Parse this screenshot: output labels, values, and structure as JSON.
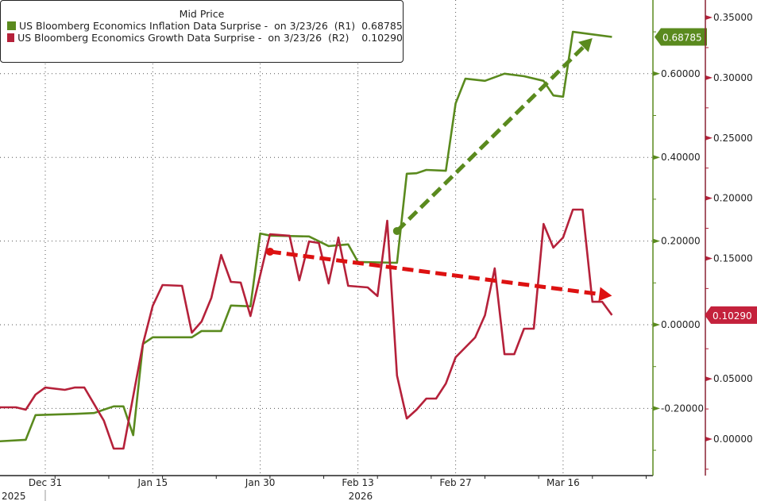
{
  "legend": {
    "title": "Mid Price",
    "entries": [
      {
        "label": "US Bloomberg Economics Inflation Data Surprise -  on 3/23/26  (R1)  0.68785",
        "color": "#5a8a1e"
      },
      {
        "label": "US Bloomberg Economics Growth Data Surprise -  on 3/23/26  (R2)    0.10290",
        "color": "#b5213a"
      }
    ]
  },
  "chart_data": {
    "type": "line",
    "title": "Mid Price",
    "grid": true,
    "legend_position": "top-left",
    "x_axis": {
      "ticks": [
        "Dec 31",
        "Jan 15",
        "Jan 30",
        "Feb 13",
        "Feb 27",
        "Mar 16"
      ],
      "tick_dates": [
        "2025-12-31",
        "2026-01-15",
        "2026-01-30",
        "2026-02-13",
        "2026-02-27",
        "2026-03-16"
      ],
      "year_labels": [
        {
          "label": "2025",
          "date": "2025-12-31"
        },
        {
          "label": "2026",
          "date": "2026-02-13"
        }
      ],
      "scale": "business days"
    },
    "y_axis_r1": {
      "ticks": [
        "0.60000",
        "0.40000",
        "0.20000",
        "0.00000",
        "-0.20000"
      ],
      "range": [
        -0.36,
        0.78
      ],
      "color": "#5a8a1e",
      "last_value_tag": "0.68785"
    },
    "y_axis_r2": {
      "ticks": [
        "0.35000",
        "0.30000",
        "0.25000",
        "0.20000",
        "0.15000",
        "0.05000",
        "0.00000"
      ],
      "range": [
        -0.03,
        0.365
      ],
      "color": "#b5213a",
      "last_value_tag": "0.10290"
    },
    "series": [
      {
        "name": "US Bloomberg Economics Inflation Data Surprise",
        "axis": "R1",
        "color": "#5a8a1e",
        "points": [
          [
            "2025-12-24",
            -0.279
          ],
          [
            "2025-12-29",
            -0.275
          ],
          [
            "2025-12-30",
            -0.216
          ],
          [
            "2026-01-05",
            -0.213
          ],
          [
            "2026-01-07",
            -0.211
          ],
          [
            "2026-01-09",
            -0.195
          ],
          [
            "2026-01-12",
            -0.195
          ],
          [
            "2026-01-13",
            -0.264
          ],
          [
            "2026-01-14",
            -0.046
          ],
          [
            "2026-01-15",
            -0.03
          ],
          [
            "2026-01-21",
            -0.03
          ],
          [
            "2026-01-22",
            -0.015
          ],
          [
            "2026-01-26",
            -0.015
          ],
          [
            "2026-01-27",
            0.046
          ],
          [
            "2026-01-29",
            0.044
          ],
          [
            "2026-01-30",
            0.218
          ],
          [
            "2026-02-02",
            0.213
          ],
          [
            "2026-02-06",
            0.211
          ],
          [
            "2026-02-10",
            0.188
          ],
          [
            "2026-02-12",
            0.192
          ],
          [
            "2026-02-13",
            0.15
          ],
          [
            "2026-02-19",
            0.148
          ],
          [
            "2026-02-20",
            0.361
          ],
          [
            "2026-02-23",
            0.362
          ],
          [
            "2026-02-24",
            0.37
          ],
          [
            "2026-02-26",
            0.368
          ],
          [
            "2026-02-27",
            0.529
          ],
          [
            "2026-03-02",
            0.588
          ],
          [
            "2026-03-04",
            0.583
          ],
          [
            "2026-03-06",
            0.6
          ],
          [
            "2026-03-10",
            0.594
          ],
          [
            "2026-03-12",
            0.583
          ],
          [
            "2026-03-13",
            0.548
          ],
          [
            "2026-03-16",
            0.545
          ],
          [
            "2026-03-17",
            0.7
          ],
          [
            "2026-03-23",
            0.68785
          ]
        ]
      },
      {
        "name": "US Bloomberg Economics Growth Data Surprise",
        "axis": "R2",
        "color": "#b5213a",
        "points": [
          [
            "2025-12-24",
            0.0264
          ],
          [
            "2025-12-26",
            0.0264
          ],
          [
            "2025-12-29",
            0.0244
          ],
          [
            "2025-12-30",
            0.0369
          ],
          [
            "2025-12-31",
            0.0428
          ],
          [
            "2026-01-02",
            0.0409
          ],
          [
            "2026-01-05",
            0.0428
          ],
          [
            "2026-01-06",
            0.0428
          ],
          [
            "2026-01-08",
            0.0152
          ],
          [
            "2026-01-09",
            -0.0079
          ],
          [
            "2026-01-12",
            -0.0079
          ],
          [
            "2026-01-14",
            0.0791
          ],
          [
            "2026-01-15",
            0.1107
          ],
          [
            "2026-01-16",
            0.1279
          ],
          [
            "2026-01-20",
            0.1272
          ],
          [
            "2026-01-21",
            0.0883
          ],
          [
            "2026-01-22",
            0.0976
          ],
          [
            "2026-01-23",
            0.1173
          ],
          [
            "2026-01-26",
            0.1529
          ],
          [
            "2026-01-27",
            0.1305
          ],
          [
            "2026-01-28",
            0.1299
          ],
          [
            "2026-01-29",
            0.1022
          ],
          [
            "2026-02-02",
            0.1701
          ],
          [
            "2026-02-04",
            0.1688
          ],
          [
            "2026-02-05",
            0.1318
          ],
          [
            "2026-02-06",
            0.1641
          ],
          [
            "2026-02-09",
            0.1628
          ],
          [
            "2026-02-10",
            0.1292
          ],
          [
            "2026-02-11",
            0.1674
          ],
          [
            "2026-02-12",
            0.1272
          ],
          [
            "2026-02-16",
            0.1259
          ],
          [
            "2026-02-17",
            0.1187
          ],
          [
            "2026-02-18",
            0.1813
          ],
          [
            "2026-02-19",
            0.0527
          ],
          [
            "2026-02-20",
            0.0171
          ],
          [
            "2026-02-23",
            0.0244
          ],
          [
            "2026-02-24",
            0.0336
          ],
          [
            "2026-02-25",
            0.0336
          ],
          [
            "2026-02-26",
            0.0461
          ],
          [
            "2026-02-27",
            0.0679
          ],
          [
            "2026-03-03",
            0.0844
          ],
          [
            "2026-03-04",
            0.1028
          ],
          [
            "2026-03-05",
            0.1417
          ],
          [
            "2026-03-06",
            0.0705
          ],
          [
            "2026-03-09",
            0.0705
          ],
          [
            "2026-03-10",
            0.0916
          ],
          [
            "2026-03-11",
            0.0916
          ],
          [
            "2026-03-12",
            0.1786
          ],
          [
            "2026-03-13",
            0.1589
          ],
          [
            "2026-03-16",
            0.1674
          ],
          [
            "2026-03-17",
            0.1905
          ],
          [
            "2026-03-18",
            0.1905
          ],
          [
            "2026-03-19",
            0.114
          ],
          [
            "2026-03-20",
            0.114
          ],
          [
            "2026-03-23",
            0.1029
          ]
        ]
      }
    ],
    "annotations": [
      {
        "type": "dashed-arrow",
        "axis": "R1",
        "color": "#5a8a1e",
        "from": [
          "2026-02-19",
          0.224
        ],
        "to": [
          "2026-03-19",
          0.685
        ]
      },
      {
        "type": "dashed-arrow",
        "axis": "R2",
        "color": "#dd1111",
        "from": [
          "2026-02-02",
          0.1556
        ],
        "to": [
          "2026-03-23",
          0.119
        ]
      }
    ]
  }
}
